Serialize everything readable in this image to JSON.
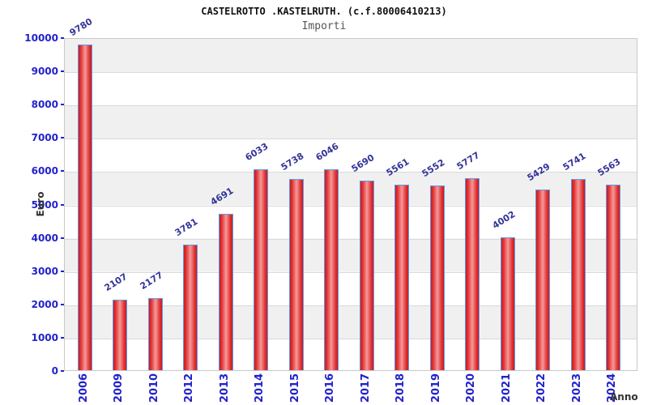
{
  "header": {
    "title": "CASTELROTTO .KASTELRUTH. (c.f.80006410213)",
    "subtitle": "Importi"
  },
  "chart_data": {
    "type": "bar",
    "title": "CASTELROTTO .KASTELRUTH. (c.f.80006410213)",
    "subtitle": "Importi",
    "xlabel": "Anno",
    "ylabel": "Euro",
    "categories": [
      "2006",
      "2009",
      "2010",
      "2012",
      "2013",
      "2014",
      "2015",
      "2016",
      "2017",
      "2018",
      "2019",
      "2020",
      "2021",
      "2022",
      "2023",
      "2024"
    ],
    "values": [
      9780,
      2107,
      2177,
      3781,
      4691,
      6033,
      5738,
      6046,
      5690,
      5561,
      5552,
      5777,
      4002,
      5429,
      5741,
      5563
    ],
    "ylim": [
      0,
      10000
    ],
    "yticks": [
      0,
      1000,
      2000,
      3000,
      4000,
      5000,
      6000,
      7000,
      8000,
      9000,
      10000
    ],
    "grid": "horizontal gridlines with alternating gray/white bands",
    "legend": "none",
    "value_labels_shown": true,
    "value_labels_rotated_deg": -32,
    "x_labels_rotated_deg": -90
  },
  "colors": {
    "axis_text": "#2222cc",
    "value_label": "#333399",
    "axis_title_text": "#333333",
    "title_text": "#111111",
    "subtitle_text": "#555555",
    "band_gray": "#f0f0f0",
    "band_white": "#ffffff",
    "grid_line": "#d9d9d9",
    "plot_border": "#c9c9c9",
    "bar_border": "#5b9bee",
    "bar_dark": "#cc1a1a",
    "bar_mid": "#e23535",
    "bar_light": "#f49a9a",
    "background": "#ffffff"
  }
}
